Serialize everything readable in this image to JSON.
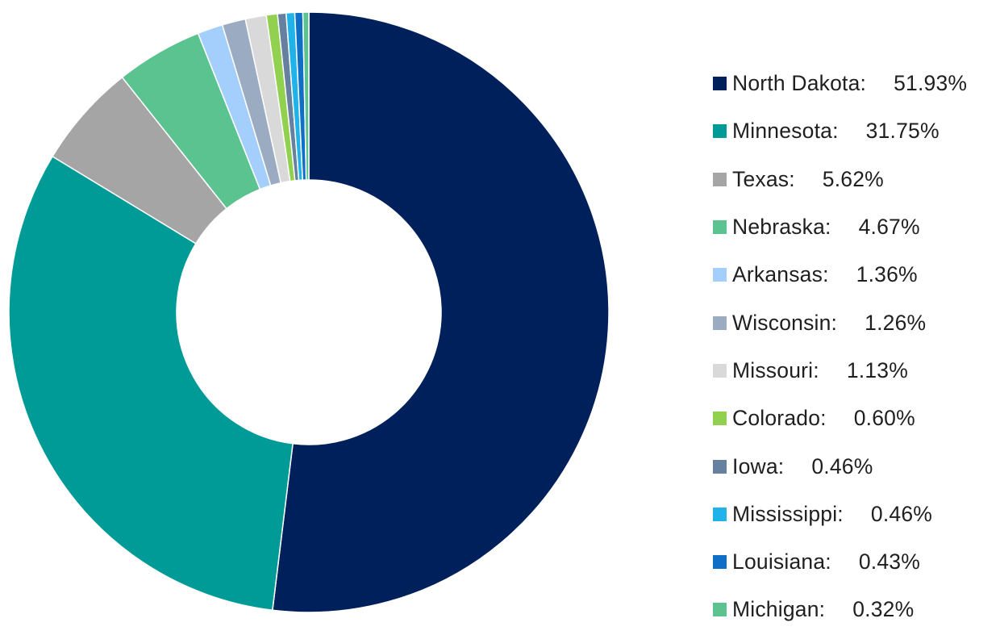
{
  "chart_data": {
    "type": "pie",
    "donut": true,
    "legend_position": "right",
    "series": [
      {
        "name": "North Dakota",
        "value": 51.93,
        "label": "North Dakota:",
        "value_text": "51.93%",
        "color": "#00205b"
      },
      {
        "name": "Minnesota",
        "value": 31.75,
        "label": "Minnesota:",
        "value_text": "31.75%",
        "color": "#009a97"
      },
      {
        "name": "Texas",
        "value": 5.62,
        "label": "Texas:",
        "value_text": "5.62%",
        "color": "#a5a5a5"
      },
      {
        "name": "Nebraska",
        "value": 4.67,
        "label": "Nebraska:",
        "value_text": "4.67%",
        "color": "#5ac38f"
      },
      {
        "name": "Arkansas",
        "value": 1.36,
        "label": "Arkansas:",
        "value_text": "1.36%",
        "color": "#a4cffc"
      },
      {
        "name": "Wisconsin",
        "value": 1.26,
        "label": "Wisconsin:",
        "value_text": "1.26%",
        "color": "#9aabc2"
      },
      {
        "name": "Missouri",
        "value": 1.13,
        "label": "Missouri:",
        "value_text": "1.13%",
        "color": "#d9d9d9"
      },
      {
        "name": "Colorado",
        "value": 0.6,
        "label": "Colorado:",
        "value_text": "0.60%",
        "color": "#92d050"
      },
      {
        "name": "Iowa",
        "value": 0.46,
        "label": "Iowa:",
        "value_text": "0.46%",
        "color": "#66809f"
      },
      {
        "name": "Mississippi",
        "value": 0.46,
        "label": "Mississippi:",
        "value_text": "0.46%",
        "color": "#1fb3ea"
      },
      {
        "name": "Louisiana",
        "value": 0.43,
        "label": "Louisiana:",
        "value_text": "0.43%",
        "color": "#0f6fc6"
      },
      {
        "name": "Michigan",
        "value": 0.32,
        "label": "Michigan:",
        "value_text": "0.32%",
        "color": "#5ac38f"
      }
    ]
  }
}
